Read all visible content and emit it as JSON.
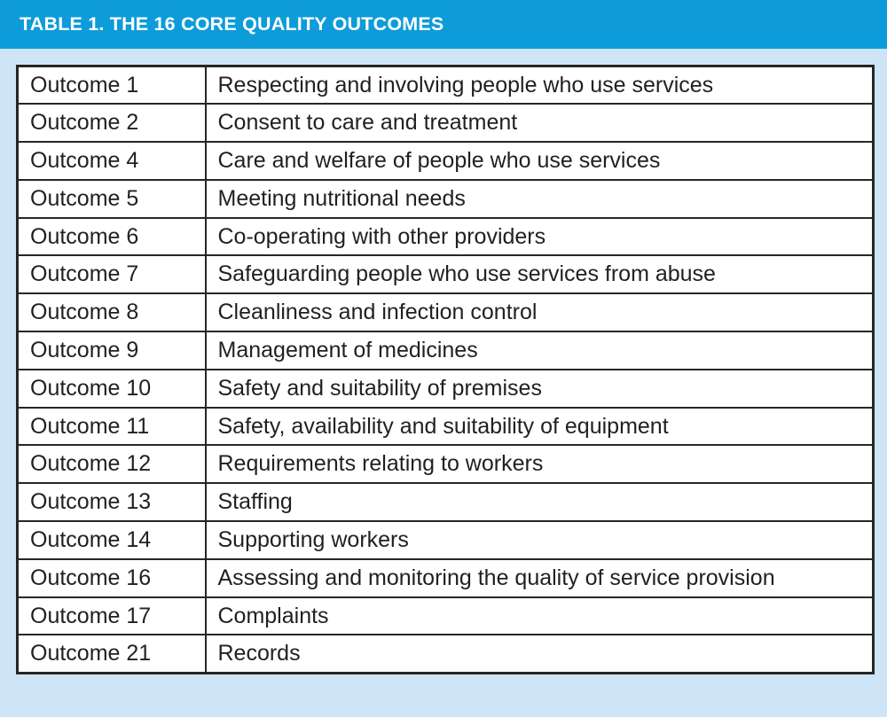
{
  "colors": {
    "header_background": "#0d9cd9",
    "page_background": "#cde5f6",
    "table_border": "#262626",
    "text": "#231f20",
    "header_text": "#ffffff"
  },
  "header": {
    "title": "TABLE 1. THE 16 CORE QUALITY OUTCOMES"
  },
  "table": {
    "columns": [
      "outcome",
      "description"
    ],
    "rows": [
      {
        "outcome": "Outcome 1",
        "description": "Respecting and involving people who use services"
      },
      {
        "outcome": "Outcome 2",
        "description": "Consent to care and treatment"
      },
      {
        "outcome": "Outcome 4",
        "description": "Care and welfare of people who use services"
      },
      {
        "outcome": "Outcome 5",
        "description": "Meeting nutritional needs"
      },
      {
        "outcome": "Outcome 6",
        "description": "Co-operating with other providers"
      },
      {
        "outcome": "Outcome 7",
        "description": "Safeguarding people who use services from abuse"
      },
      {
        "outcome": "Outcome 8",
        "description": "Cleanliness and infection control"
      },
      {
        "outcome": "Outcome 9",
        "description": "Management of medicines"
      },
      {
        "outcome": "Outcome 10",
        "description": "Safety and suitability of premises"
      },
      {
        "outcome": "Outcome 11",
        "description": "Safety, availability and suitability of equipment"
      },
      {
        "outcome": "Outcome 12",
        "description": "Requirements relating to workers"
      },
      {
        "outcome": "Outcome 13",
        "description": "Staffing"
      },
      {
        "outcome": "Outcome 14",
        "description": "Supporting workers"
      },
      {
        "outcome": "Outcome 16",
        "description": "Assessing and monitoring the quality of service provision"
      },
      {
        "outcome": "Outcome 17",
        "description": "Complaints"
      },
      {
        "outcome": "Outcome 21",
        "description": "Records"
      }
    ]
  }
}
